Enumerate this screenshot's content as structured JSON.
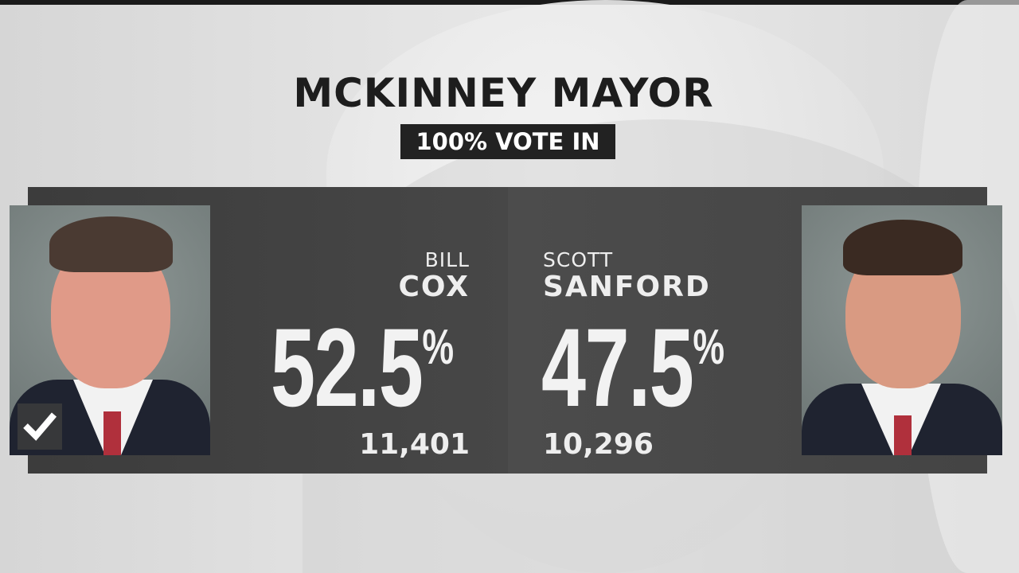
{
  "title": "MCKINNEY MAYOR",
  "status": "100% VOTE IN",
  "candidates": [
    {
      "first": "BILL",
      "last": "COX",
      "percent": "52.5",
      "percent_sign": "%",
      "votes": "11,401",
      "winner": true
    },
    {
      "first": "SCOTT",
      "last": "SANFORD",
      "percent": "47.5",
      "percent_sign": "%",
      "votes": "10,296",
      "winner": false
    }
  ],
  "colors": {
    "panel": "#444444",
    "badge": "#222222",
    "text": "#f2f2f2"
  },
  "icons": {
    "winner": "checkmark-icon"
  }
}
